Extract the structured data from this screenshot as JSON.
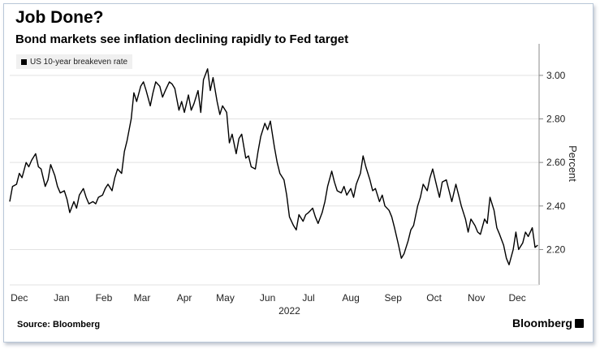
{
  "title": "Job Done?",
  "subtitle": "Bond markets see inflation declining rapidly to Fed target",
  "source_label": "Source:",
  "source_name": "Bloomberg",
  "brand": "Bloomberg",
  "colors": {
    "line": "#000000",
    "grid": "#e2e2e2",
    "axis": "#888888"
  },
  "chart_data": {
    "type": "line",
    "title": "Job Done?",
    "subtitle": "Bond markets see inflation declining rapidly to Fed target",
    "ylabel": "Percent",
    "year_label": "2022",
    "y_axis_side": "right",
    "ylim": [
      2.06,
      3.13
    ],
    "yticks": [
      "2.20",
      "2.40",
      "2.60",
      "2.80",
      "3.00"
    ],
    "xlim": [
      "2021-12-08",
      "2022-12-31"
    ],
    "month_ticks": [
      {
        "label": "Dec",
        "date": "2021-12-15"
      },
      {
        "label": "Jan",
        "date": "2022-01-15"
      },
      {
        "label": "Feb",
        "date": "2022-02-15"
      },
      {
        "label": "Mar",
        "date": "2022-03-15"
      },
      {
        "label": "Apr",
        "date": "2022-04-15"
      },
      {
        "label": "May",
        "date": "2022-05-15"
      },
      {
        "label": "Jun",
        "date": "2022-06-15"
      },
      {
        "label": "Jul",
        "date": "2022-07-15"
      },
      {
        "label": "Aug",
        "date": "2022-08-15"
      },
      {
        "label": "Sep",
        "date": "2022-09-15"
      },
      {
        "label": "Oct",
        "date": "2022-10-15"
      },
      {
        "label": "Nov",
        "date": "2022-11-15"
      },
      {
        "label": "Dec",
        "date": "2022-12-15"
      }
    ],
    "grid": true,
    "legend": "top-left",
    "series": [
      {
        "name": "US 10-year breakeven rate",
        "points": [
          [
            "2021-12-08",
            2.42
          ],
          [
            "2021-12-10",
            2.49
          ],
          [
            "2021-12-13",
            2.5
          ],
          [
            "2021-12-15",
            2.55
          ],
          [
            "2021-12-17",
            2.53
          ],
          [
            "2021-12-20",
            2.6
          ],
          [
            "2021-12-22",
            2.58
          ],
          [
            "2021-12-24",
            2.61
          ],
          [
            "2021-12-27",
            2.64
          ],
          [
            "2021-12-29",
            2.58
          ],
          [
            "2021-12-31",
            2.57
          ],
          [
            "2022-01-03",
            2.49
          ],
          [
            "2022-01-05",
            2.52
          ],
          [
            "2022-01-07",
            2.59
          ],
          [
            "2022-01-10",
            2.54
          ],
          [
            "2022-01-12",
            2.49
          ],
          [
            "2022-01-14",
            2.46
          ],
          [
            "2022-01-17",
            2.47
          ],
          [
            "2022-01-19",
            2.43
          ],
          [
            "2022-01-21",
            2.37
          ],
          [
            "2022-01-24",
            2.42
          ],
          [
            "2022-01-26",
            2.39
          ],
          [
            "2022-01-28",
            2.45
          ],
          [
            "2022-01-31",
            2.48
          ],
          [
            "2022-02-02",
            2.44
          ],
          [
            "2022-02-04",
            2.41
          ],
          [
            "2022-02-07",
            2.42
          ],
          [
            "2022-02-09",
            2.41
          ],
          [
            "2022-02-11",
            2.44
          ],
          [
            "2022-02-14",
            2.45
          ],
          [
            "2022-02-16",
            2.48
          ],
          [
            "2022-02-18",
            2.5
          ],
          [
            "2022-02-21",
            2.47
          ],
          [
            "2022-02-23",
            2.53
          ],
          [
            "2022-02-25",
            2.57
          ],
          [
            "2022-02-28",
            2.55
          ],
          [
            "2022-03-02",
            2.65
          ],
          [
            "2022-03-04",
            2.7
          ],
          [
            "2022-03-07",
            2.8
          ],
          [
            "2022-03-09",
            2.92
          ],
          [
            "2022-03-11",
            2.88
          ],
          [
            "2022-03-14",
            2.95
          ],
          [
            "2022-03-16",
            2.97
          ],
          [
            "2022-03-18",
            2.93
          ],
          [
            "2022-03-21",
            2.86
          ],
          [
            "2022-03-23",
            2.92
          ],
          [
            "2022-03-25",
            2.97
          ],
          [
            "2022-03-28",
            2.95
          ],
          [
            "2022-03-30",
            2.9
          ],
          [
            "2022-04-01",
            2.93
          ],
          [
            "2022-04-04",
            2.97
          ],
          [
            "2022-04-06",
            2.96
          ],
          [
            "2022-04-08",
            2.94
          ],
          [
            "2022-04-11",
            2.84
          ],
          [
            "2022-04-13",
            2.88
          ],
          [
            "2022-04-15",
            2.83
          ],
          [
            "2022-04-18",
            2.91
          ],
          [
            "2022-04-20",
            2.84
          ],
          [
            "2022-04-22",
            2.87
          ],
          [
            "2022-04-25",
            2.93
          ],
          [
            "2022-04-27",
            2.83
          ],
          [
            "2022-04-29",
            2.98
          ],
          [
            "2022-05-02",
            3.03
          ],
          [
            "2022-05-04",
            2.93
          ],
          [
            "2022-05-06",
            2.99
          ],
          [
            "2022-05-09",
            2.88
          ],
          [
            "2022-05-11",
            2.82
          ],
          [
            "2022-05-13",
            2.86
          ],
          [
            "2022-05-16",
            2.83
          ],
          [
            "2022-05-18",
            2.69
          ],
          [
            "2022-05-20",
            2.73
          ],
          [
            "2022-05-23",
            2.64
          ],
          [
            "2022-05-25",
            2.71
          ],
          [
            "2022-05-27",
            2.73
          ],
          [
            "2022-05-30",
            2.62
          ],
          [
            "2022-06-01",
            2.63
          ],
          [
            "2022-06-03",
            2.58
          ],
          [
            "2022-06-06",
            2.57
          ],
          [
            "2022-06-08",
            2.65
          ],
          [
            "2022-06-10",
            2.72
          ],
          [
            "2022-06-13",
            2.78
          ],
          [
            "2022-06-15",
            2.75
          ],
          [
            "2022-06-17",
            2.79
          ],
          [
            "2022-06-20",
            2.67
          ],
          [
            "2022-06-22",
            2.6
          ],
          [
            "2022-06-24",
            2.55
          ],
          [
            "2022-06-27",
            2.52
          ],
          [
            "2022-06-29",
            2.45
          ],
          [
            "2022-07-01",
            2.35
          ],
          [
            "2022-07-04",
            2.31
          ],
          [
            "2022-07-06",
            2.29
          ],
          [
            "2022-07-08",
            2.36
          ],
          [
            "2022-07-11",
            2.33
          ],
          [
            "2022-07-13",
            2.36
          ],
          [
            "2022-07-15",
            2.37
          ],
          [
            "2022-07-18",
            2.39
          ],
          [
            "2022-07-20",
            2.35
          ],
          [
            "2022-07-22",
            2.32
          ],
          [
            "2022-07-25",
            2.37
          ],
          [
            "2022-07-27",
            2.42
          ],
          [
            "2022-07-29",
            2.49
          ],
          [
            "2022-08-01",
            2.56
          ],
          [
            "2022-08-03",
            2.51
          ],
          [
            "2022-08-05",
            2.47
          ],
          [
            "2022-08-08",
            2.46
          ],
          [
            "2022-08-10",
            2.49
          ],
          [
            "2022-08-12",
            2.45
          ],
          [
            "2022-08-15",
            2.48
          ],
          [
            "2022-08-17",
            2.44
          ],
          [
            "2022-08-19",
            2.5
          ],
          [
            "2022-08-22",
            2.55
          ],
          [
            "2022-08-24",
            2.63
          ],
          [
            "2022-08-26",
            2.58
          ],
          [
            "2022-08-29",
            2.52
          ],
          [
            "2022-08-31",
            2.47
          ],
          [
            "2022-09-02",
            2.48
          ],
          [
            "2022-09-05",
            2.42
          ],
          [
            "2022-09-07",
            2.45
          ],
          [
            "2022-09-09",
            2.4
          ],
          [
            "2022-09-12",
            2.38
          ],
          [
            "2022-09-14",
            2.35
          ],
          [
            "2022-09-16",
            2.3
          ],
          [
            "2022-09-19",
            2.22
          ],
          [
            "2022-09-21",
            2.16
          ],
          [
            "2022-09-23",
            2.18
          ],
          [
            "2022-09-26",
            2.24
          ],
          [
            "2022-09-28",
            2.29
          ],
          [
            "2022-09-30",
            2.31
          ],
          [
            "2022-10-03",
            2.4
          ],
          [
            "2022-10-05",
            2.44
          ],
          [
            "2022-10-07",
            2.5
          ],
          [
            "2022-10-10",
            2.47
          ],
          [
            "2022-10-12",
            2.53
          ],
          [
            "2022-10-14",
            2.57
          ],
          [
            "2022-10-17",
            2.49
          ],
          [
            "2022-10-19",
            2.44
          ],
          [
            "2022-10-21",
            2.51
          ],
          [
            "2022-10-24",
            2.52
          ],
          [
            "2022-10-26",
            2.47
          ],
          [
            "2022-10-28",
            2.42
          ],
          [
            "2022-10-31",
            2.5
          ],
          [
            "2022-11-02",
            2.45
          ],
          [
            "2022-11-04",
            2.4
          ],
          [
            "2022-11-07",
            2.34
          ],
          [
            "2022-11-09",
            2.28
          ],
          [
            "2022-11-11",
            2.34
          ],
          [
            "2022-11-14",
            2.31
          ],
          [
            "2022-11-16",
            2.28
          ],
          [
            "2022-11-18",
            2.27
          ],
          [
            "2022-11-21",
            2.34
          ],
          [
            "2022-11-23",
            2.32
          ],
          [
            "2022-11-25",
            2.44
          ],
          [
            "2022-11-28",
            2.38
          ],
          [
            "2022-11-30",
            2.3
          ],
          [
            "2022-12-02",
            2.27
          ],
          [
            "2022-12-05",
            2.22
          ],
          [
            "2022-12-07",
            2.16
          ],
          [
            "2022-12-09",
            2.13
          ],
          [
            "2022-12-12",
            2.2
          ],
          [
            "2022-12-14",
            2.28
          ],
          [
            "2022-12-16",
            2.2
          ],
          [
            "2022-12-19",
            2.23
          ],
          [
            "2022-12-21",
            2.28
          ],
          [
            "2022-12-23",
            2.26
          ],
          [
            "2022-12-26",
            2.3
          ],
          [
            "2022-12-28",
            2.21
          ],
          [
            "2022-12-30",
            2.22
          ]
        ]
      }
    ]
  }
}
